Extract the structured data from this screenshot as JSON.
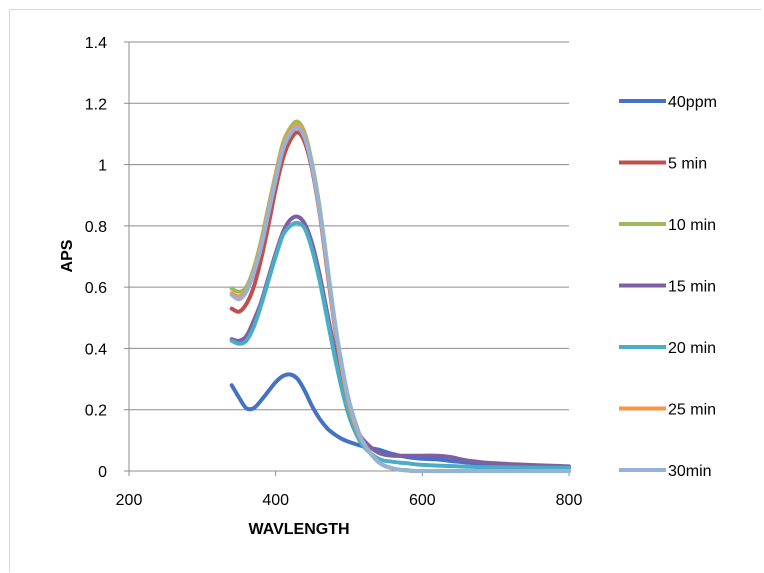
{
  "chart_data": {
    "type": "line",
    "title": "",
    "xlabel": "WAVLENGTH",
    "ylabel": "APS",
    "xlim": [
      200,
      800
    ],
    "ylim": [
      0,
      1.4
    ],
    "x_ticks": [
      200,
      400,
      600,
      800
    ],
    "y_ticks": [
      0,
      0.2,
      0.4,
      0.6,
      0.8,
      1,
      1.2,
      1.4
    ],
    "x_tick_labels": [
      "200",
      "400",
      "600",
      "800"
    ],
    "y_tick_labels": [
      "0",
      "0.2",
      "0.4",
      "0.6",
      "0.8",
      "1",
      "1.2",
      "1.4"
    ],
    "grid": "horizontal",
    "legend_position": "right",
    "series": [
      {
        "name": "40ppm",
        "color": "#4472c4",
        "points": [
          [
            340,
            0.28
          ],
          [
            350,
            0.24
          ],
          [
            360,
            0.205
          ],
          [
            370,
            0.205
          ],
          [
            380,
            0.23
          ],
          [
            390,
            0.26
          ],
          [
            400,
            0.29
          ],
          [
            410,
            0.31
          ],
          [
            420,
            0.315
          ],
          [
            430,
            0.3
          ],
          [
            440,
            0.26
          ],
          [
            450,
            0.21
          ],
          [
            460,
            0.17
          ],
          [
            470,
            0.14
          ],
          [
            480,
            0.12
          ],
          [
            490,
            0.105
          ],
          [
            500,
            0.095
          ],
          [
            520,
            0.08
          ],
          [
            540,
            0.07
          ],
          [
            560,
            0.055
          ],
          [
            580,
            0.045
          ],
          [
            600,
            0.04
          ],
          [
            620,
            0.038
          ],
          [
            650,
            0.03
          ],
          [
            700,
            0.02
          ],
          [
            800,
            0.01
          ]
        ]
      },
      {
        "name": "5 min",
        "color": "#c0504d",
        "points": [
          [
            340,
            0.53
          ],
          [
            350,
            0.52
          ],
          [
            360,
            0.545
          ],
          [
            370,
            0.6
          ],
          [
            380,
            0.69
          ],
          [
            390,
            0.8
          ],
          [
            400,
            0.92
          ],
          [
            410,
            1.02
          ],
          [
            420,
            1.08
          ],
          [
            430,
            1.105
          ],
          [
            440,
            1.07
          ],
          [
            450,
            0.98
          ],
          [
            460,
            0.84
          ],
          [
            470,
            0.66
          ],
          [
            480,
            0.48
          ],
          [
            490,
            0.33
          ],
          [
            500,
            0.22
          ],
          [
            510,
            0.14
          ],
          [
            520,
            0.09
          ],
          [
            540,
            0.03
          ],
          [
            560,
            0.008
          ],
          [
            580,
            0.002
          ],
          [
            600,
            0
          ],
          [
            700,
            0
          ],
          [
            800,
            0
          ]
        ]
      },
      {
        "name": "10 min",
        "color": "#9bbb59",
        "points": [
          [
            340,
            0.595
          ],
          [
            350,
            0.585
          ],
          [
            360,
            0.6
          ],
          [
            370,
            0.66
          ],
          [
            380,
            0.75
          ],
          [
            390,
            0.86
          ],
          [
            400,
            0.97
          ],
          [
            410,
            1.07
          ],
          [
            420,
            1.12
          ],
          [
            430,
            1.14
          ],
          [
            440,
            1.1
          ],
          [
            450,
            1.0
          ],
          [
            460,
            0.86
          ],
          [
            470,
            0.68
          ],
          [
            480,
            0.49
          ],
          [
            490,
            0.34
          ],
          [
            500,
            0.22
          ],
          [
            510,
            0.14
          ],
          [
            520,
            0.09
          ],
          [
            540,
            0.03
          ],
          [
            560,
            0.008
          ],
          [
            580,
            0.002
          ],
          [
            600,
            0
          ],
          [
            700,
            0
          ],
          [
            800,
            0
          ]
        ]
      },
      {
        "name": "15 min",
        "color": "#7f5fa3",
        "points": [
          [
            340,
            0.43
          ],
          [
            350,
            0.425
          ],
          [
            360,
            0.44
          ],
          [
            370,
            0.49
          ],
          [
            380,
            0.55
          ],
          [
            390,
            0.63
          ],
          [
            400,
            0.71
          ],
          [
            410,
            0.78
          ],
          [
            420,
            0.82
          ],
          [
            430,
            0.83
          ],
          [
            440,
            0.805
          ],
          [
            450,
            0.74
          ],
          [
            460,
            0.64
          ],
          [
            470,
            0.52
          ],
          [
            480,
            0.4
          ],
          [
            490,
            0.29
          ],
          [
            500,
            0.2
          ],
          [
            510,
            0.14
          ],
          [
            520,
            0.1
          ],
          [
            540,
            0.06
          ],
          [
            560,
            0.05
          ],
          [
            580,
            0.05
          ],
          [
            600,
            0.05
          ],
          [
            620,
            0.05
          ],
          [
            640,
            0.045
          ],
          [
            660,
            0.035
          ],
          [
            700,
            0.025
          ],
          [
            800,
            0.015
          ]
        ]
      },
      {
        "name": "20 min",
        "color": "#4bacc6",
        "points": [
          [
            340,
            0.425
          ],
          [
            350,
            0.415
          ],
          [
            360,
            0.425
          ],
          [
            370,
            0.47
          ],
          [
            380,
            0.54
          ],
          [
            390,
            0.62
          ],
          [
            400,
            0.7
          ],
          [
            410,
            0.77
          ],
          [
            420,
            0.8
          ],
          [
            430,
            0.81
          ],
          [
            440,
            0.79
          ],
          [
            450,
            0.72
          ],
          [
            460,
            0.62
          ],
          [
            470,
            0.5
          ],
          [
            480,
            0.38
          ],
          [
            490,
            0.27
          ],
          [
            500,
            0.18
          ],
          [
            510,
            0.12
          ],
          [
            520,
            0.08
          ],
          [
            540,
            0.04
          ],
          [
            560,
            0.03
          ],
          [
            580,
            0.025
          ],
          [
            600,
            0.02
          ],
          [
            650,
            0.015
          ],
          [
            700,
            0.012
          ],
          [
            800,
            0.01
          ]
        ]
      },
      {
        "name": "25 min",
        "color": "#f79646",
        "points": [
          [
            340,
            0.58
          ],
          [
            350,
            0.57
          ],
          [
            360,
            0.59
          ],
          [
            370,
            0.65
          ],
          [
            380,
            0.74
          ],
          [
            390,
            0.85
          ],
          [
            400,
            0.96
          ],
          [
            410,
            1.06
          ],
          [
            420,
            1.11
          ],
          [
            430,
            1.13
          ],
          [
            440,
            1.09
          ],
          [
            450,
            0.99
          ],
          [
            460,
            0.85
          ],
          [
            470,
            0.67
          ],
          [
            480,
            0.49
          ],
          [
            490,
            0.34
          ],
          [
            500,
            0.22
          ],
          [
            510,
            0.14
          ],
          [
            520,
            0.09
          ],
          [
            540,
            0.03
          ],
          [
            560,
            0.008
          ],
          [
            580,
            0.002
          ],
          [
            600,
            0
          ],
          [
            700,
            0
          ],
          [
            800,
            0
          ]
        ]
      },
      {
        "name": "30min",
        "color": "#95b3d7",
        "points": [
          [
            340,
            0.575
          ],
          [
            350,
            0.56
          ],
          [
            360,
            0.585
          ],
          [
            370,
            0.645
          ],
          [
            380,
            0.73
          ],
          [
            390,
            0.84
          ],
          [
            400,
            0.95
          ],
          [
            410,
            1.05
          ],
          [
            420,
            1.1
          ],
          [
            430,
            1.12
          ],
          [
            440,
            1.085
          ],
          [
            450,
            0.99
          ],
          [
            460,
            0.85
          ],
          [
            470,
            0.68
          ],
          [
            480,
            0.5
          ],
          [
            490,
            0.35
          ],
          [
            500,
            0.23
          ],
          [
            510,
            0.15
          ],
          [
            520,
            0.09
          ],
          [
            540,
            0.03
          ],
          [
            560,
            0.008
          ],
          [
            580,
            0.002
          ],
          [
            600,
            0
          ],
          [
            700,
            0
          ],
          [
            800,
            0
          ]
        ]
      }
    ]
  }
}
